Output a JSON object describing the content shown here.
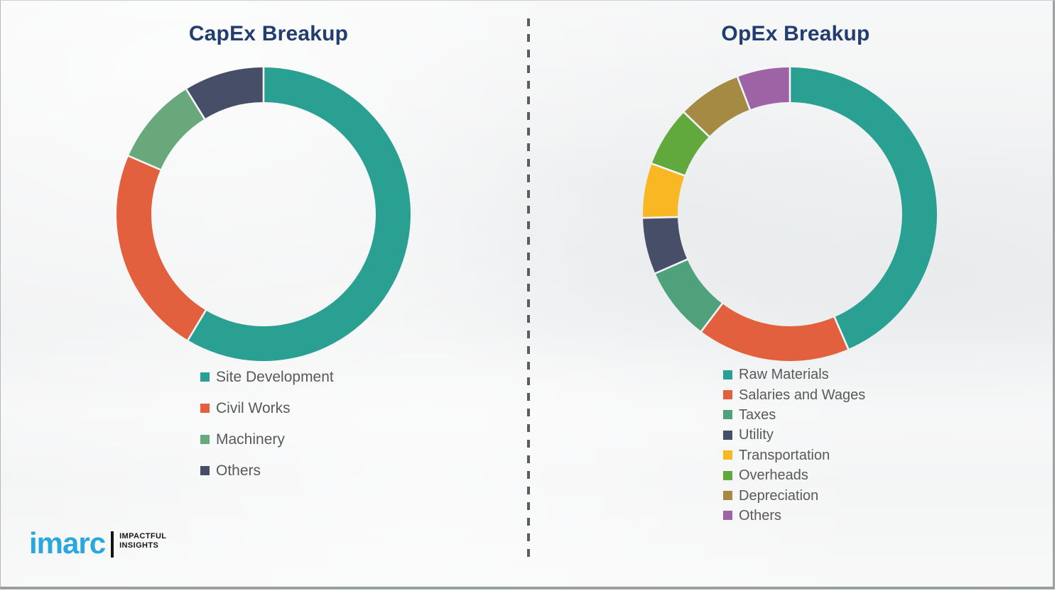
{
  "chart_data": [
    {
      "type": "pie",
      "subtype": "donut",
      "title": "CapEx Breakup",
      "categories": [
        "Site Development",
        "Civil Works",
        "Machinery",
        "Others"
      ],
      "values": [
        58.6,
        22.9,
        9.7,
        8.8
      ],
      "values_are_estimated_percent": true,
      "colors": [
        "#2AA093",
        "#E2603D",
        "#68A87A",
        "#474E68"
      ],
      "start_angle": "top",
      "direction": "clockwise",
      "legend_position": "below-left",
      "data_labels": false
    },
    {
      "type": "pie",
      "subtype": "donut",
      "title": "OpEx Breakup",
      "categories": [
        "Raw Materials",
        "Salaries and Wages",
        "Taxes",
        "Utility",
        "Transportation",
        "Overheads",
        "Depreciation",
        "Others"
      ],
      "values": [
        43.5,
        16.8,
        8.1,
        6.2,
        6.0,
        6.6,
        7.0,
        5.8
      ],
      "values_are_estimated_percent": true,
      "colors": [
        "#2AA093",
        "#E2603D",
        "#4FA17B",
        "#474E68",
        "#F9B723",
        "#61A83D",
        "#A58A44",
        "#9D63A5"
      ],
      "start_angle": "top",
      "direction": "clockwise",
      "legend_position": "below-left",
      "data_labels": false
    }
  ],
  "style": {
    "title_color": "#223D6F",
    "legend_text_color": "#595959",
    "background_color": "#f0f1f2",
    "segment_gap_color": "#f4f5f6"
  },
  "branding": {
    "logo_text": "imarc",
    "tagline_line1": "IMPACTFUL",
    "tagline_line2": "INSIGHTS",
    "logo_color": "#2BA7E0"
  }
}
